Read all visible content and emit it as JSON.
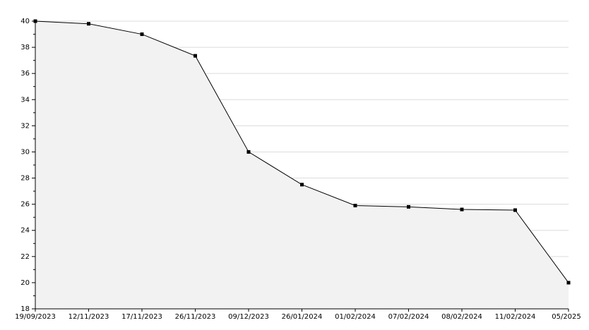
{
  "chart_data": {
    "type": "area",
    "categories": [
      "19/09/2023",
      "12/11/2023",
      "17/11/2023",
      "26/11/2023",
      "09/12/2023",
      "26/01/2024",
      "01/02/2024",
      "07/02/2024",
      "08/02/2024",
      "11/02/2024",
      "05/2025"
    ],
    "values": [
      40,
      39.8,
      39,
      37.35,
      30,
      27.5,
      25.9,
      25.8,
      25.6,
      25.55,
      20
    ],
    "color": "#000000",
    "fill": "#f2f2f2",
    "ylim": [
      18,
      40
    ],
    "yticks": [
      18,
      20,
      22,
      24,
      26,
      28,
      30,
      32,
      34,
      36,
      38,
      40
    ],
    "yminorticks": [
      19,
      21,
      23,
      25,
      27,
      29,
      31,
      33,
      35,
      37,
      39
    ],
    "grid": true
  }
}
